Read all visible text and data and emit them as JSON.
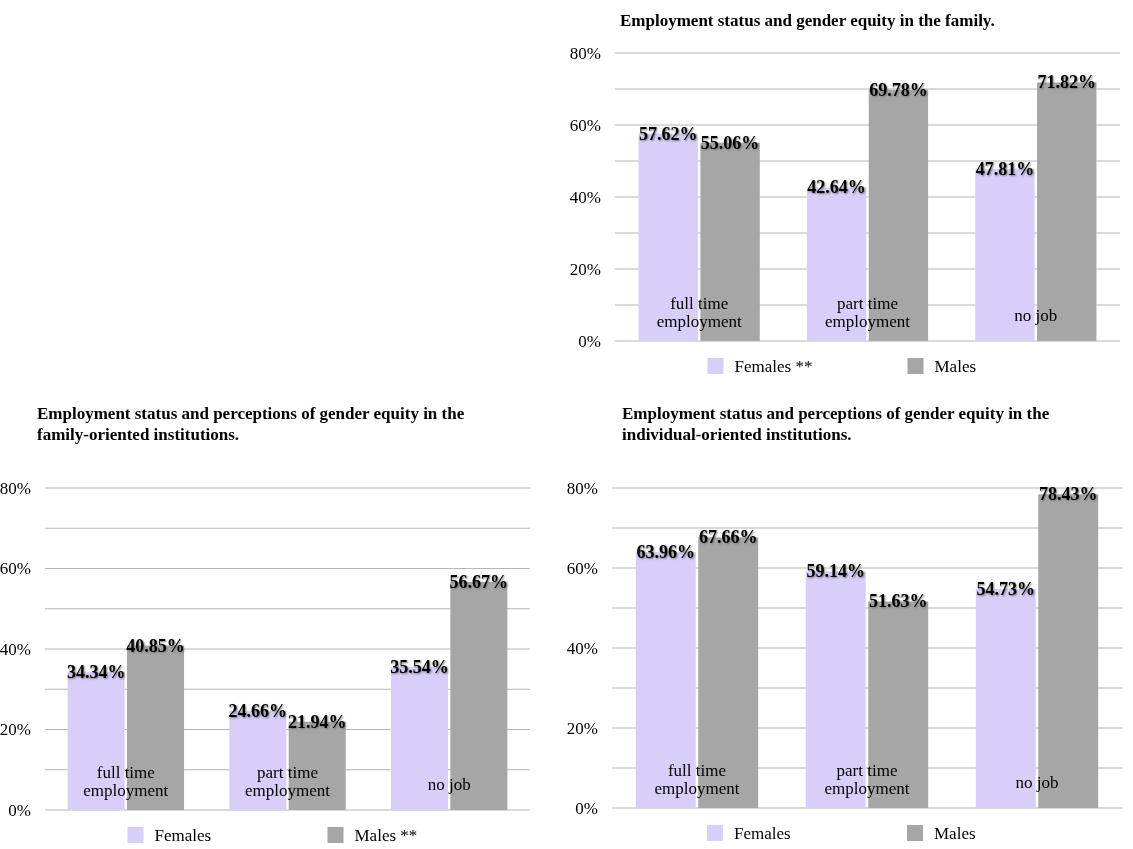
{
  "chart_data": [
    {
      "type": "bar",
      "title": "Employment status and gender equity in the family.",
      "categories": [
        "full time employment",
        "part time employment",
        "no job"
      ],
      "series": [
        {
          "name": "Females **",
          "color": "#d9cdfa",
          "values": [
            57.62,
            42.64,
            47.81
          ],
          "value_labels": [
            "57.62%",
            "42.64%",
            "47.81%"
          ]
        },
        {
          "name": "Males",
          "color": "#a6a6a6",
          "values": [
            55.06,
            69.78,
            71.82
          ],
          "value_labels": [
            "55.06%",
            "69.78%",
            "71.82%"
          ]
        }
      ],
      "ylim": [
        0,
        80
      ],
      "yticks": [
        {
          "value": 0,
          "label": "0%"
        },
        {
          "value": 10,
          "label": null
        },
        {
          "value": 20,
          "label": "20%"
        },
        {
          "value": 30,
          "label": null
        },
        {
          "value": 40,
          "label": "40%"
        },
        {
          "value": 50,
          "label": null
        },
        {
          "value": 60,
          "label": "60%"
        },
        {
          "value": 70,
          "label": null
        },
        {
          "value": 80,
          "label": "80%"
        }
      ],
      "grid": "y",
      "legend": "bottom"
    },
    {
      "type": "bar",
      "title": "Employment status and perceptions of gender equity in the family-oriented institutions.",
      "categories": [
        "full time employment",
        "part time employment",
        "no job"
      ],
      "series": [
        {
          "name": "Females",
          "color": "#d9cdfa",
          "values": [
            34.34,
            24.66,
            35.54
          ],
          "value_labels": [
            "34.34%",
            "24.66%",
            "35.54%"
          ]
        },
        {
          "name": "Males **",
          "color": "#a6a6a6",
          "values": [
            40.85,
            21.94,
            56.67
          ],
          "value_labels": [
            "40.85%",
            "21.94%",
            "56.67%"
          ]
        }
      ],
      "ylim": [
        0,
        80
      ],
      "yticks": [
        {
          "value": 0,
          "label": "0%"
        },
        {
          "value": 10,
          "label": null
        },
        {
          "value": 20,
          "label": "20%"
        },
        {
          "value": 30,
          "label": null
        },
        {
          "value": 40,
          "label": "40%"
        },
        {
          "value": 50,
          "label": null
        },
        {
          "value": 60,
          "label": "60%"
        },
        {
          "value": 70,
          "label": null
        },
        {
          "value": 80,
          "label": "80%"
        }
      ],
      "grid": "y",
      "legend": "bottom"
    },
    {
      "type": "bar",
      "title": "Employment status and perceptions of gender equity in the individual-oriented institutions.",
      "categories": [
        "full time employment",
        "part time employment",
        "no job"
      ],
      "series": [
        {
          "name": "Females",
          "color": "#d9cdfa",
          "values": [
            63.96,
            59.14,
            54.73
          ],
          "value_labels": [
            "63.96%",
            "59.14%",
            "54.73%"
          ]
        },
        {
          "name": "Males",
          "color": "#a6a6a6",
          "values": [
            67.66,
            51.63,
            78.43
          ],
          "value_labels": [
            "67.66%",
            "51.63%",
            "78.43%"
          ]
        }
      ],
      "ylim": [
        0,
        80
      ],
      "yticks": [
        {
          "value": 0,
          "label": "0%"
        },
        {
          "value": 10,
          "label": null
        },
        {
          "value": 20,
          "label": "20%"
        },
        {
          "value": 30,
          "label": null
        },
        {
          "value": 40,
          "label": "40%"
        },
        {
          "value": 50,
          "label": null
        },
        {
          "value": 60,
          "label": "60%"
        },
        {
          "value": 70,
          "label": null
        },
        {
          "value": 80,
          "label": "80%"
        }
      ],
      "grid": "y",
      "legend": "bottom"
    }
  ]
}
